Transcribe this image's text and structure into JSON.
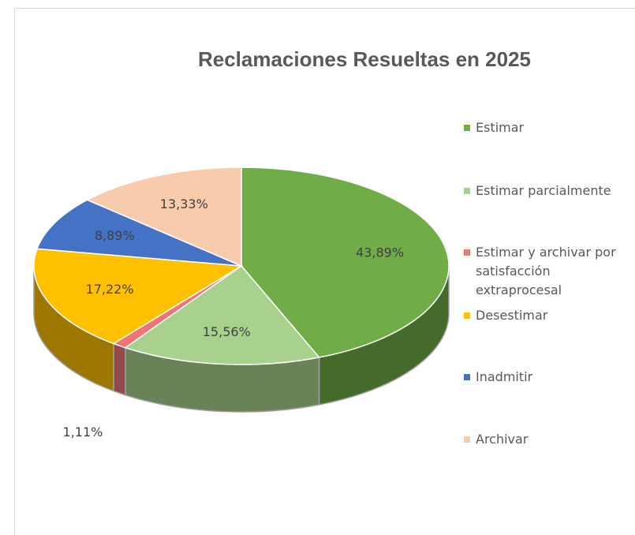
{
  "chart_data": {
    "type": "pie",
    "title": "Reclamaciones Resueltas en 2025",
    "categories": [
      "Estimar",
      "Estimar parcialmente",
      "Estimar y archivar por satisfacción extraprocesal",
      "Desestimar",
      "Inadmitir",
      "Archivar"
    ],
    "values": [
      43.89,
      15.56,
      1.11,
      17.22,
      8.89,
      13.33
    ],
    "value_labels": [
      "43,89%",
      "15,56%",
      "1,11%",
      "17,22%",
      "8,89%",
      "13,33%"
    ],
    "colors": [
      "#70ad47",
      "#a9d18e",
      "#f07474",
      "#ffc000",
      "#4472c4",
      "#f8cbad"
    ]
  }
}
